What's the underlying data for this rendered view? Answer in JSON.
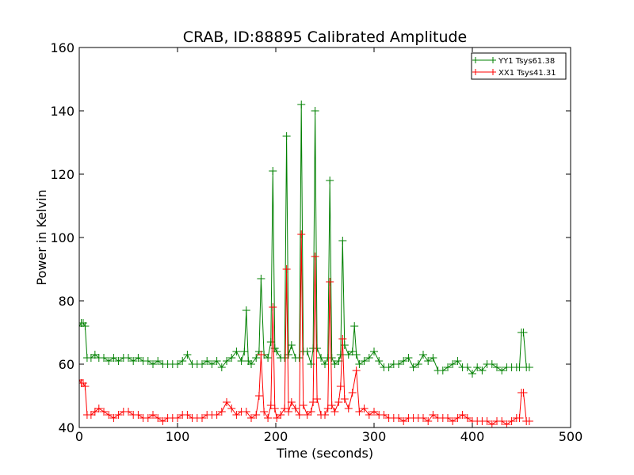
{
  "chart_data": {
    "type": "line",
    "title": "CRAB, ID:88895 Calibrated Amplitude",
    "xlabel": "Time (seconds)",
    "ylabel": "Power in Kelvin",
    "xlim": [
      0,
      500
    ],
    "ylim": [
      40,
      160
    ],
    "xticks": [
      "0",
      "100",
      "200",
      "300",
      "400",
      "500"
    ],
    "yticks": [
      "40",
      "60",
      "80",
      "100",
      "120",
      "140",
      "160"
    ],
    "grid": false,
    "legend_position": "top-right",
    "marker": "plus",
    "series": [
      {
        "name": "YY1 Tsys61.38",
        "color": "#008000",
        "x": [
          0,
          2,
          4,
          6,
          8,
          12,
          16,
          20,
          25,
          30,
          35,
          40,
          45,
          50,
          55,
          60,
          65,
          70,
          75,
          80,
          85,
          90,
          95,
          100,
          105,
          110,
          115,
          120,
          125,
          130,
          135,
          140,
          145,
          150,
          155,
          160,
          165,
          168,
          170,
          172,
          175,
          180,
          183,
          185,
          188,
          192,
          195,
          197,
          199,
          201,
          205,
          209,
          211,
          213,
          216,
          220,
          224,
          226,
          228,
          232,
          236,
          238,
          240,
          242,
          246,
          250,
          253,
          255,
          257,
          260,
          264,
          266,
          268,
          270,
          274,
          278,
          280,
          282,
          285,
          290,
          295,
          300,
          305,
          310,
          315,
          320,
          325,
          330,
          335,
          340,
          345,
          350,
          355,
          360,
          365,
          370,
          375,
          380,
          385,
          390,
          395,
          400,
          405,
          410,
          415,
          420,
          425,
          430,
          435,
          440,
          445,
          448,
          450,
          452,
          455,
          458
        ],
        "y": [
          72,
          73,
          73,
          72,
          62,
          62,
          63,
          62,
          62,
          61,
          62,
          61,
          62,
          62,
          61,
          62,
          61,
          61,
          60,
          61,
          60,
          60,
          60,
          60,
          61,
          63,
          60,
          60,
          60,
          61,
          60,
          61,
          59,
          61,
          62,
          64,
          61,
          64,
          77,
          61,
          60,
          62,
          64,
          87,
          63,
          62,
          67,
          121,
          65,
          64,
          62,
          62,
          132,
          63,
          66,
          62,
          62,
          142,
          64,
          64,
          60,
          65,
          140,
          65,
          62,
          60,
          62,
          118,
          62,
          60,
          61,
          63,
          99,
          66,
          63,
          64,
          72,
          63,
          60,
          61,
          62,
          64,
          61,
          59,
          59,
          60,
          60,
          61,
          62,
          59,
          60,
          63,
          61,
          62,
          58,
          58,
          59,
          60,
          61,
          59,
          59,
          57,
          59,
          58,
          60,
          60,
          59,
          58,
          59,
          59,
          59,
          59,
          70,
          70,
          59,
          59
        ]
      },
      {
        "name": "XX1 Tsys41.31",
        "color": "#ff0000",
        "x": [
          0,
          2,
          4,
          6,
          8,
          12,
          16,
          20,
          25,
          30,
          35,
          40,
          45,
          50,
          55,
          60,
          65,
          70,
          75,
          80,
          85,
          90,
          95,
          100,
          105,
          110,
          115,
          120,
          125,
          130,
          135,
          140,
          145,
          150,
          155,
          160,
          165,
          170,
          175,
          180,
          183,
          185,
          188,
          192,
          195,
          197,
          199,
          201,
          205,
          209,
          211,
          213,
          216,
          220,
          224,
          226,
          228,
          232,
          236,
          238,
          240,
          242,
          246,
          250,
          253,
          255,
          257,
          260,
          264,
          266,
          268,
          270,
          274,
          278,
          282,
          285,
          290,
          295,
          300,
          305,
          310,
          315,
          320,
          325,
          330,
          335,
          340,
          345,
          350,
          355,
          360,
          365,
          370,
          375,
          380,
          385,
          390,
          395,
          400,
          405,
          410,
          415,
          420,
          425,
          430,
          435,
          440,
          445,
          448,
          450,
          452,
          455,
          458
        ],
        "y": [
          55,
          54,
          54,
          53,
          44,
          44,
          45,
          46,
          45,
          44,
          43,
          44,
          45,
          45,
          44,
          44,
          43,
          43,
          44,
          43,
          42,
          43,
          43,
          43,
          44,
          44,
          43,
          43,
          43,
          44,
          44,
          44,
          45,
          48,
          46,
          44,
          45,
          45,
          43,
          44,
          50,
          63,
          45,
          43,
          47,
          78,
          46,
          43,
          44,
          46,
          90,
          45,
          48,
          46,
          44,
          101,
          47,
          44,
          45,
          48,
          94,
          49,
          44,
          44,
          46,
          86,
          47,
          45,
          48,
          53,
          68,
          49,
          46,
          51,
          58,
          45,
          46,
          44,
          45,
          44,
          44,
          43,
          43,
          43,
          42,
          43,
          43,
          43,
          43,
          42,
          44,
          43,
          43,
          43,
          42,
          43,
          44,
          43,
          42,
          42,
          42,
          42,
          41,
          42,
          42,
          41,
          42,
          43,
          43,
          51,
          51,
          42,
          42
        ]
      }
    ]
  }
}
